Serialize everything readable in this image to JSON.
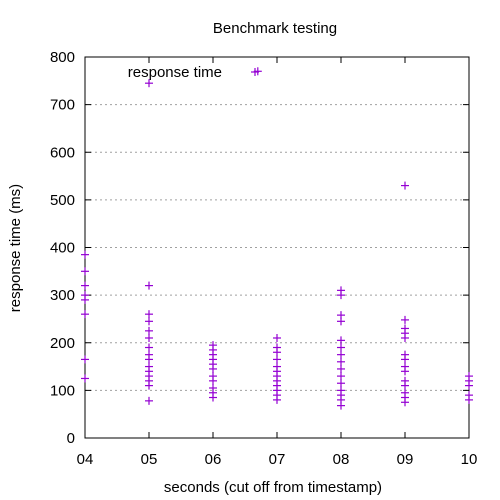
{
  "chart_data": {
    "type": "scatter",
    "title": "Benchmark testing",
    "xlabel": "seconds (cut off from timestamp)",
    "ylabel": "response time (ms)",
    "xlim": [
      4,
      10
    ],
    "ylim": [
      0,
      800
    ],
    "xticks": [
      4,
      5,
      6,
      7,
      8,
      9,
      10
    ],
    "xtick_labels": [
      "04",
      "05",
      "06",
      "07",
      "08",
      "09",
      "10"
    ],
    "yticks": [
      0,
      100,
      200,
      300,
      400,
      500,
      600,
      700,
      800
    ],
    "ytick_labels": [
      "0",
      "100",
      "200",
      "300",
      "400",
      "500",
      "600",
      "700",
      "800"
    ],
    "grid": "horizontal dotted",
    "legend_position": "top-left",
    "series": [
      {
        "name": "response time",
        "color": "#9400d3",
        "marker": "plus",
        "points": [
          [
            4,
            385
          ],
          [
            4,
            350
          ],
          [
            4,
            320
          ],
          [
            4,
            300
          ],
          [
            4,
            290
          ],
          [
            4,
            260
          ],
          [
            4,
            165
          ],
          [
            4,
            125
          ],
          [
            5,
            745
          ],
          [
            5,
            320
          ],
          [
            5,
            260
          ],
          [
            5,
            245
          ],
          [
            5,
            225
          ],
          [
            5,
            210
          ],
          [
            5,
            190
          ],
          [
            5,
            175
          ],
          [
            5,
            165
          ],
          [
            5,
            150
          ],
          [
            5,
            140
          ],
          [
            5,
            130
          ],
          [
            5,
            120
          ],
          [
            5,
            110
          ],
          [
            5,
            78
          ],
          [
            6,
            195
          ],
          [
            6,
            185
          ],
          [
            6,
            175
          ],
          [
            6,
            165
          ],
          [
            6,
            155
          ],
          [
            6,
            145
          ],
          [
            6,
            130
          ],
          [
            6,
            120
          ],
          [
            6,
            105
          ],
          [
            6,
            95
          ],
          [
            6,
            85
          ],
          [
            6.7,
            770
          ],
          [
            7,
            210
          ],
          [
            7,
            190
          ],
          [
            7,
            180
          ],
          [
            7,
            165
          ],
          [
            7,
            150
          ],
          [
            7,
            140
          ],
          [
            7,
            130
          ],
          [
            7,
            120
          ],
          [
            7,
            110
          ],
          [
            7,
            100
          ],
          [
            7,
            90
          ],
          [
            7,
            80
          ],
          [
            8,
            310
          ],
          [
            8,
            300
          ],
          [
            8,
            258
          ],
          [
            8,
            245
          ],
          [
            8,
            205
          ],
          [
            8,
            190
          ],
          [
            8,
            175
          ],
          [
            8,
            160
          ],
          [
            8,
            145
          ],
          [
            8,
            130
          ],
          [
            8,
            115
          ],
          [
            8,
            100
          ],
          [
            8,
            90
          ],
          [
            8,
            80
          ],
          [
            8,
            68
          ],
          [
            9,
            530
          ],
          [
            9,
            248
          ],
          [
            9,
            230
          ],
          [
            9,
            220
          ],
          [
            9,
            210
          ],
          [
            9,
            175
          ],
          [
            9,
            165
          ],
          [
            9,
            150
          ],
          [
            9,
            140
          ],
          [
            9,
            120
          ],
          [
            9,
            110
          ],
          [
            9,
            95
          ],
          [
            9,
            85
          ],
          [
            9,
            75
          ],
          [
            10,
            130
          ],
          [
            10,
            120
          ],
          [
            10,
            110
          ],
          [
            10,
            90
          ],
          [
            10,
            80
          ]
        ]
      }
    ]
  }
}
